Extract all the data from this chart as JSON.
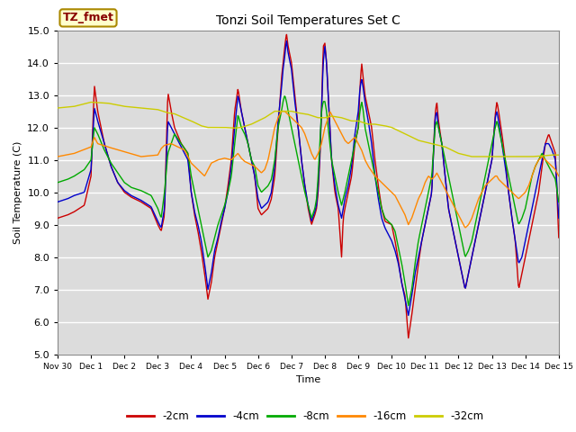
{
  "title": "Tonzi Soil Temperatures Set C",
  "xlabel": "Time",
  "ylabel": "Soil Temperature (C)",
  "ylim": [
    5.0,
    15.0
  ],
  "yticks": [
    5.0,
    6.0,
    7.0,
    8.0,
    9.0,
    10.0,
    11.0,
    12.0,
    13.0,
    14.0,
    15.0
  ],
  "bg_color": "#dcdcdc",
  "annotation_text": "TZ_fmet",
  "annotation_bg": "#ffffcc",
  "annotation_border": "#aa8800",
  "colors": {
    "-2cm": "#cc0000",
    "-4cm": "#0000cc",
    "-8cm": "#00aa00",
    "-16cm": "#ff8800",
    "-32cm": "#cccc00"
  },
  "xtick_labels": [
    "Nov 30",
    "Dec 1",
    "Dec 2",
    "Dec 3",
    "Dec 4",
    "Dec 5",
    "Dec 6",
    "Dec 7",
    "Dec 8",
    "Dec 9",
    "Dec 10",
    "Dec 11",
    "Dec 12",
    "Dec 13",
    "Dec 14",
    "Dec 15"
  ],
  "n_days": 15
}
